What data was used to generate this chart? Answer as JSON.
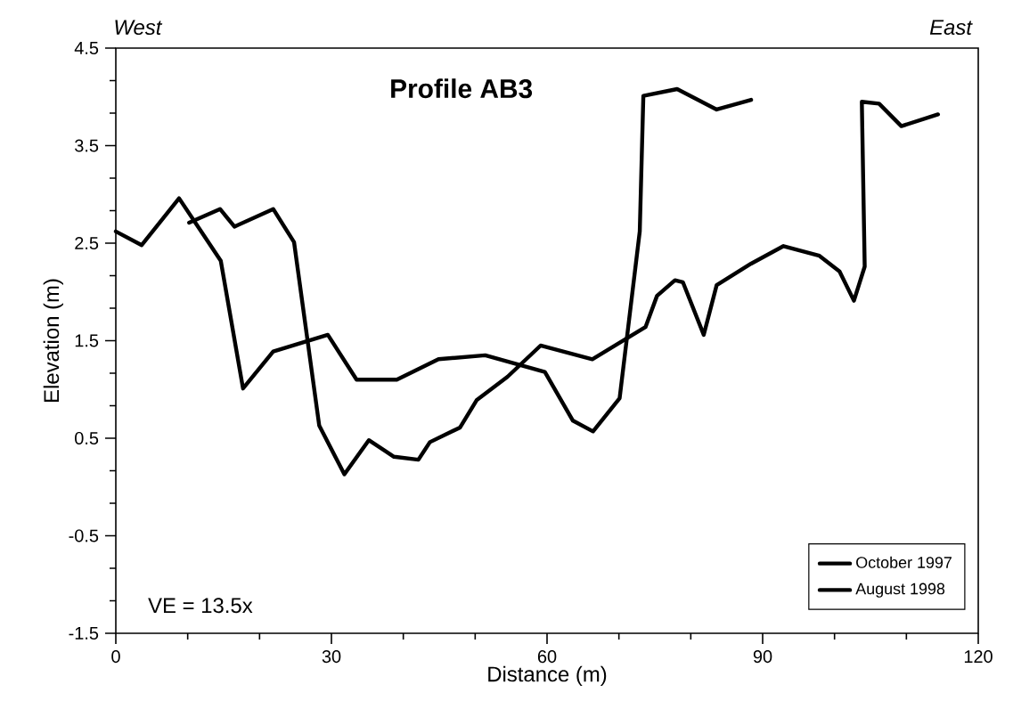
{
  "chart_data": {
    "type": "line",
    "title": "Profile AB3",
    "xlabel": "Distance (m)",
    "ylabel": "Elevation (m)",
    "annotations": [
      "West",
      "East",
      "VE = 13.5x"
    ],
    "xlim": [
      0,
      120
    ],
    "xticks": [
      0,
      30,
      60,
      90,
      120
    ],
    "ylim": [
      -1.5,
      4.5
    ],
    "yticks": [
      -1.5,
      -0.5,
      0.5,
      1.5,
      2.5,
      3.5,
      4.5
    ],
    "grid": false,
    "legend": "bottom right",
    "marker": "none",
    "line_style": "solid",
    "series": [
      {
        "name": "October 1997",
        "color": "#000000",
        "x": [
          0,
          3.6,
          8.8,
          14.6,
          17.7,
          21.9,
          29.5,
          33.5,
          39.1,
          44.9,
          51.4,
          59.7,
          63.6,
          66.4,
          70.1,
          72.9,
          73.4,
          78.1,
          83.6,
          88.4
        ],
        "values": [
          2.62,
          2.48,
          2.96,
          2.32,
          1.01,
          1.39,
          1.56,
          1.1,
          1.1,
          1.31,
          1.35,
          1.18,
          0.68,
          0.57,
          0.91,
          2.62,
          4.01,
          4.08,
          3.87,
          3.97
        ]
      },
      {
        "name": "August 1998",
        "color": "#000000",
        "x": [
          10.2,
          14.5,
          16.5,
          21.9,
          24.8,
          28.3,
          31.8,
          35.2,
          38.7,
          42.1,
          43.7,
          47.9,
          50.2,
          54.5,
          59.1,
          66.3,
          73.7,
          75.3,
          77.8,
          78.9,
          81.8,
          83.6,
          88.4,
          92.9,
          97.9,
          100.7,
          102.7,
          104.2,
          103.8,
          106.2,
          109.3,
          114.4
        ],
        "values": [
          2.71,
          2.85,
          2.67,
          2.85,
          2.51,
          0.63,
          0.13,
          0.48,
          0.31,
          0.28,
          0.46,
          0.61,
          0.89,
          1.13,
          1.45,
          1.31,
          1.64,
          1.96,
          2.12,
          2.1,
          1.56,
          2.07,
          2.29,
          2.47,
          2.37,
          2.21,
          1.91,
          2.26,
          3.95,
          3.93,
          3.7,
          3.82
        ]
      }
    ]
  }
}
